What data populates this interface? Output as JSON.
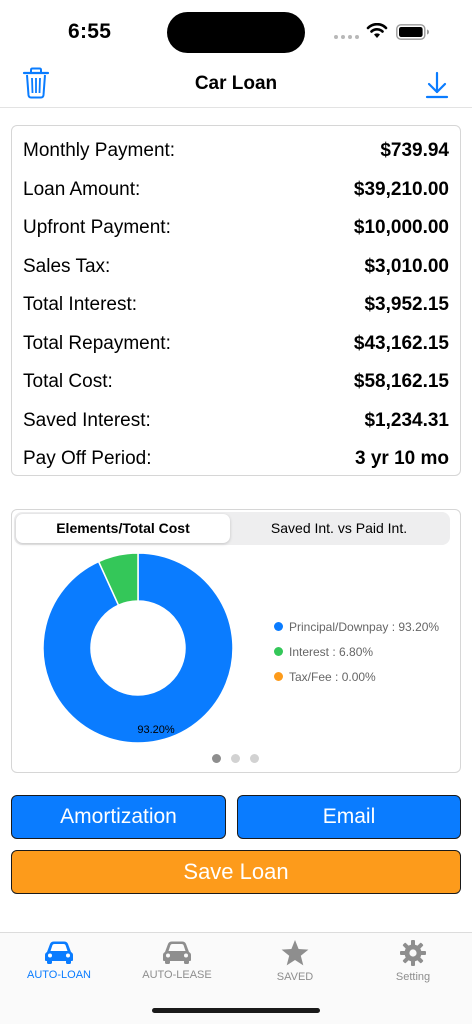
{
  "status_bar": {
    "time": "6:55"
  },
  "nav": {
    "title": "Car Loan"
  },
  "summary": [
    {
      "label": "Monthly Payment:",
      "value": "$739.94"
    },
    {
      "label": "Loan Amount:",
      "value": "$39,210.00"
    },
    {
      "label": "Upfront Payment:",
      "value": "$10,000.00"
    },
    {
      "label": "Sales Tax:",
      "value": "$3,010.00"
    },
    {
      "label": "Total Interest:",
      "value": "$3,952.15"
    },
    {
      "label": "Total Repayment:",
      "value": "$43,162.15"
    },
    {
      "label": "Total Cost:",
      "value": "$58,162.15"
    },
    {
      "label": "Saved Interest:",
      "value": "$1,234.31"
    },
    {
      "label": "Pay Off Period:",
      "value": "3 yr 10 mo"
    }
  ],
  "chart_tabs": {
    "active": "Elements/Total Cost",
    "inactive": "Saved Int. vs Paid Int."
  },
  "chart_data": {
    "type": "pie",
    "donut": true,
    "slices": [
      {
        "label": "Principal/Downpay",
        "value": 93.2,
        "color": "#0a7cff"
      },
      {
        "label": "Interest",
        "value": 6.8,
        "color": "#34c759"
      },
      {
        "label": "Tax/Fee",
        "value": 0.0,
        "color": "#fd9b1b"
      }
    ],
    "data_label": "93.20%",
    "legend": [
      "Principal/Downpay : 93.20%",
      "Interest : 6.80%",
      "Tax/Fee : 0.00%"
    ],
    "legend_position": "right"
  },
  "page_indicator": {
    "count": 3,
    "current": 1
  },
  "buttons": {
    "amortization": "Amortization",
    "email": "Email",
    "save": "Save Loan"
  },
  "tabs": [
    {
      "label": "AUTO-LOAN",
      "icon": "car-icon",
      "active": true
    },
    {
      "label": "AUTO-LEASE",
      "icon": "car-icon",
      "active": false
    },
    {
      "label": "SAVED",
      "icon": "star-icon",
      "active": false
    },
    {
      "label": "Setting",
      "icon": "gear-icon",
      "active": false
    }
  ],
  "colors": {
    "accent": "#0a7cff",
    "save": "#fd9b1b",
    "interest": "#34c759"
  }
}
